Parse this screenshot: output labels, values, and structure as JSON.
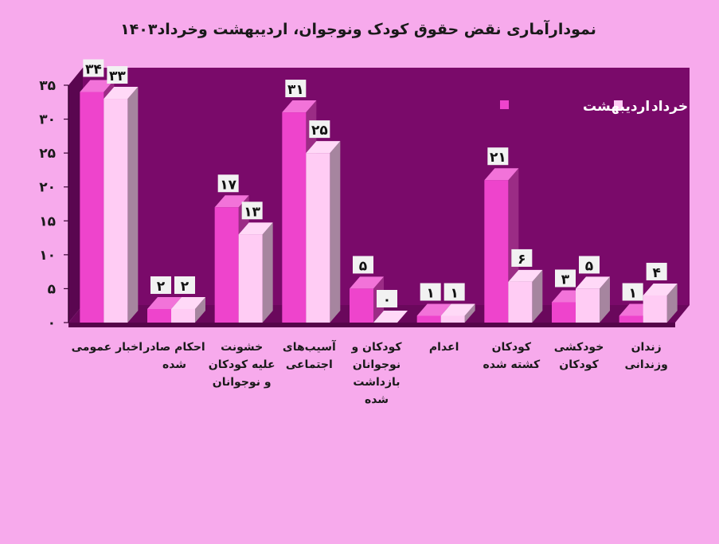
{
  "chart_data": {
    "type": "bar",
    "title": "نمودارآماری نقض حقوق کودک ونوجوان، اردیبهشت وخرداد۱۴۰۳",
    "categories": [
      [
        "اخبار عمومی"
      ],
      [
        "احکام صادر",
        "شده"
      ],
      [
        "خشونت",
        "علیه کودکان",
        "و نوجوانان"
      ],
      [
        "آسیب‌های",
        "اجتماعی"
      ],
      [
        "کودکان و",
        "نوجوانان",
        "بازداشت",
        "شده"
      ],
      [
        "اعدام"
      ],
      [
        "کودکان",
        "کشته شده"
      ],
      [
        "خودکشی",
        "کودکان"
      ],
      [
        "زندان",
        "وزندانی"
      ]
    ],
    "series": [
      {
        "name": "اردیبهشت",
        "color": "#ee44cc",
        "values": [
          34,
          2,
          17,
          31,
          5,
          1,
          21,
          3,
          1
        ],
        "labels": [
          "۳۴",
          "۲",
          "۱۷",
          "۳۱",
          "۵",
          "۱",
          "۲۱",
          "۳",
          "۱"
        ]
      },
      {
        "name": "خرداد",
        "color": "#ffccf4",
        "values": [
          33,
          2,
          13,
          25,
          0,
          1,
          6,
          5,
          4
        ],
        "labels": [
          "۳۳",
          "۲",
          "۱۳",
          "۲۵",
          "۰",
          "۱",
          "۶",
          "۵",
          "۴"
        ]
      }
    ],
    "ylim": [
      0,
      35
    ],
    "yticks": [
      0,
      5,
      10,
      15,
      20,
      25,
      30,
      35
    ],
    "ytick_labels": [
      "۰",
      "۵",
      "۱۰",
      "۱۵",
      "۲۰",
      "۲۵",
      "۳۰",
      "۳۵"
    ],
    "grid": false,
    "legend": "top-right",
    "colors": {
      "background": "#f7aaec",
      "plot_wall": "#7a0a6a",
      "floor": "#6a085c"
    }
  }
}
